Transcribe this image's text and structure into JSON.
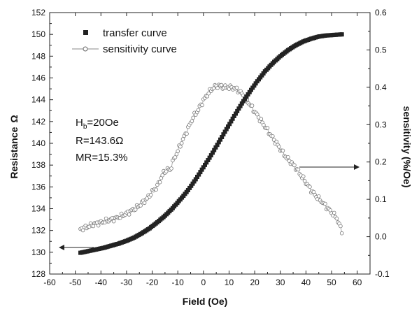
{
  "chart_data": {
    "type": "scatter",
    "xlabel": "Field (Oe)",
    "ylabel_left": "Resistance",
    "ylabel_left_unit": "Ω",
    "ylabel_right": "sensitivity (%/Oe)",
    "xlim": [
      -60,
      65
    ],
    "ylim_left": [
      128,
      152
    ],
    "ylim_right": [
      -0.1,
      0.6
    ],
    "x_ticks": [
      -60,
      -50,
      -40,
      -30,
      -20,
      -10,
      0,
      10,
      20,
      30,
      40,
      50,
      60
    ],
    "y_left_ticks": [
      128,
      130,
      132,
      134,
      136,
      138,
      140,
      142,
      144,
      146,
      148,
      150,
      152
    ],
    "y_right_ticks": [
      -0.1,
      0.0,
      0.1,
      0.2,
      0.3,
      0.4,
      0.5,
      0.6
    ],
    "legend": {
      "position": "top-left",
      "entries": [
        "transfer curve",
        "sensitivity curve"
      ]
    },
    "annotation": {
      "hb_main": "H",
      "hb_sub": "b",
      "hb_rest": "=20Oe",
      "r_line": "R=143.6Ω",
      "mr_line": "MR=15.3%"
    },
    "series": [
      {
        "name": "transfer curve",
        "axis": "left",
        "marker": "filled-square",
        "x": [
          -48,
          -45,
          -42,
          -39,
          -36,
          -33,
          -30,
          -27,
          -24,
          -21,
          -18,
          -15,
          -12,
          -9,
          -6,
          -3,
          0,
          3,
          6,
          9,
          12,
          15,
          18,
          21,
          24,
          27,
          30,
          33,
          36,
          39,
          42,
          45,
          48,
          51,
          54
        ],
        "y": [
          129.95,
          130.1,
          130.25,
          130.4,
          130.6,
          130.8,
          131.05,
          131.35,
          131.75,
          132.2,
          132.75,
          133.35,
          134.05,
          134.85,
          135.7,
          136.7,
          137.8,
          138.9,
          140.1,
          141.3,
          142.5,
          143.65,
          144.7,
          145.7,
          146.6,
          147.35,
          148.0,
          148.55,
          149.0,
          149.35,
          149.6,
          149.8,
          149.9,
          149.95,
          150.0
        ]
      },
      {
        "name": "sensitivity curve",
        "axis": "right",
        "marker": "open-circle",
        "x": [
          -48,
          -46,
          -44,
          -42,
          -40,
          -38,
          -36,
          -34,
          -32,
          -30,
          -28,
          -26,
          -24,
          -22,
          -20,
          -18,
          -16,
          -15,
          -14,
          -13,
          -12,
          -10,
          -8,
          -6,
          -4,
          -2,
          0,
          2,
          4,
          6,
          8,
          10,
          12,
          14,
          16,
          18,
          20,
          22,
          24,
          26,
          28,
          30,
          32,
          34,
          36,
          38,
          40,
          42,
          44,
          46,
          48,
          50,
          52,
          54
        ],
        "y": [
          0.02,
          0.025,
          0.03,
          0.035,
          0.038,
          0.042,
          0.046,
          0.05,
          0.055,
          0.062,
          0.07,
          0.078,
          0.09,
          0.102,
          0.12,
          0.135,
          0.165,
          0.175,
          0.18,
          0.178,
          0.2,
          0.23,
          0.26,
          0.29,
          0.32,
          0.34,
          0.365,
          0.385,
          0.4,
          0.405,
          0.4,
          0.4,
          0.398,
          0.39,
          0.375,
          0.355,
          0.335,
          0.315,
          0.295,
          0.275,
          0.255,
          0.235,
          0.215,
          0.2,
          0.185,
          0.165,
          0.145,
          0.125,
          0.108,
          0.095,
          0.08,
          0.065,
          0.05,
          0.015
        ]
      }
    ]
  }
}
